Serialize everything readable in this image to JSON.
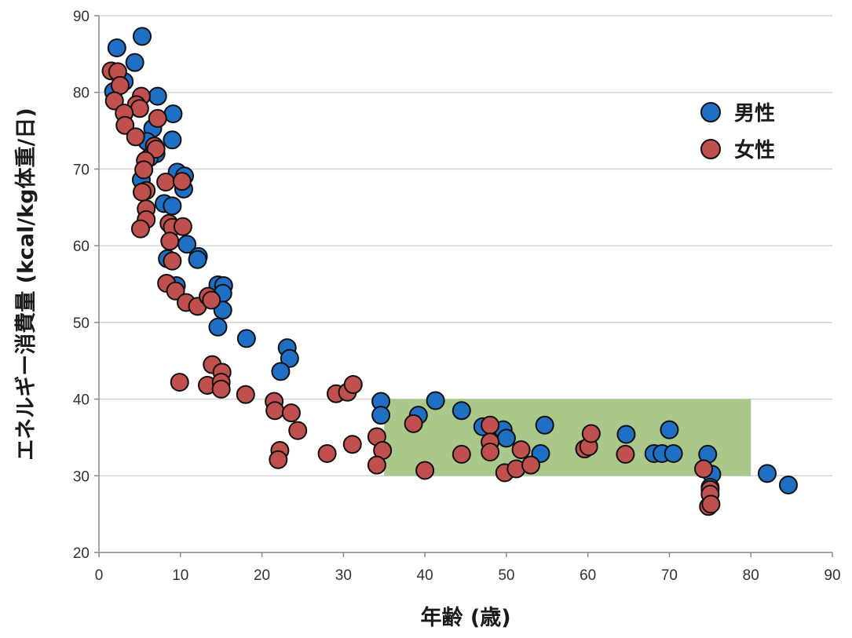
{
  "chart_data": {
    "type": "scatter",
    "title": "",
    "xlabel": "年齢 (歳)",
    "ylabel": "エネルギー消費量 (kcal/kg体重/日)",
    "xlim": [
      0,
      90
    ],
    "ylim": [
      20,
      90
    ],
    "x_ticks": [
      "0",
      "10",
      "20",
      "30",
      "40",
      "50",
      "60",
      "70",
      "80",
      "90"
    ],
    "y_ticks": [
      "20",
      "30",
      "40",
      "50",
      "60",
      "70",
      "80",
      "90"
    ],
    "grid": "horizontal",
    "legend_position": "top-right",
    "highlight_region": {
      "x": [
        35,
        80
      ],
      "y": [
        30,
        40
      ],
      "color": "#a9c88a"
    },
    "series": [
      {
        "name": "男性",
        "color": "#1f6fc4",
        "points": [
          [
            5.3,
            87.3
          ],
          [
            2.2,
            85.8
          ],
          [
            4.4,
            83.9
          ],
          [
            3.1,
            81.4
          ],
          [
            1.8,
            80.1
          ],
          [
            7.2,
            79.5
          ],
          [
            9.1,
            77.2
          ],
          [
            6.6,
            75.3
          ],
          [
            5.9,
            73.6
          ],
          [
            9.0,
            73.8
          ],
          [
            7.0,
            72.0
          ],
          [
            6.2,
            71.5
          ],
          [
            9.6,
            69.6
          ],
          [
            10.5,
            69.1
          ],
          [
            5.2,
            68.6
          ],
          [
            10.4,
            67.4
          ],
          [
            8.0,
            65.5
          ],
          [
            9.0,
            65.2
          ],
          [
            10.8,
            60.2
          ],
          [
            12.2,
            58.6
          ],
          [
            8.4,
            58.3
          ],
          [
            12.1,
            58.2
          ],
          [
            9.5,
            54.8
          ],
          [
            14.6,
            54.9
          ],
          [
            15.3,
            54.8
          ],
          [
            15.2,
            53.8
          ],
          [
            15.2,
            51.6
          ],
          [
            14.6,
            49.4
          ],
          [
            18.1,
            47.9
          ],
          [
            23.1,
            46.7
          ],
          [
            23.4,
            45.3
          ],
          [
            22.3,
            43.6
          ],
          [
            34.6,
            39.7
          ],
          [
            41.3,
            39.8
          ],
          [
            34.6,
            37.9
          ],
          [
            39.2,
            37.9
          ],
          [
            44.5,
            38.5
          ],
          [
            47.1,
            36.4
          ],
          [
            49.6,
            36.0
          ],
          [
            54.7,
            36.6
          ],
          [
            50.0,
            34.9
          ],
          [
            64.7,
            35.4
          ],
          [
            70.0,
            36.0
          ],
          [
            54.2,
            32.9
          ],
          [
            68.1,
            32.9
          ],
          [
            69.1,
            32.9
          ],
          [
            70.5,
            32.9
          ],
          [
            74.7,
            32.8
          ],
          [
            75.2,
            30.2
          ],
          [
            82.0,
            30.3
          ],
          [
            84.6,
            28.8
          ],
          [
            75.0,
            28.5
          ]
        ]
      },
      {
        "name": "女性",
        "color": "#c0504d",
        "points": [
          [
            1.5,
            82.8
          ],
          [
            2.3,
            82.7
          ],
          [
            2.6,
            80.9
          ],
          [
            5.2,
            79.5
          ],
          [
            4.6,
            78.4
          ],
          [
            1.9,
            78.9
          ],
          [
            5.0,
            77.9
          ],
          [
            3.1,
            77.3
          ],
          [
            7.2,
            76.6
          ],
          [
            3.2,
            75.7
          ],
          [
            4.5,
            74.2
          ],
          [
            6.8,
            73.0
          ],
          [
            7.0,
            72.6
          ],
          [
            5.7,
            71.1
          ],
          [
            5.5,
            69.9
          ],
          [
            8.2,
            68.3
          ],
          [
            10.2,
            68.4
          ],
          [
            5.8,
            67.2
          ],
          [
            5.3,
            67.0
          ],
          [
            5.8,
            64.8
          ],
          [
            5.8,
            63.4
          ],
          [
            8.6,
            62.9
          ],
          [
            9.0,
            62.4
          ],
          [
            10.3,
            62.5
          ],
          [
            5.1,
            62.2
          ],
          [
            8.7,
            60.6
          ],
          [
            9.0,
            58.0
          ],
          [
            8.3,
            55.1
          ],
          [
            9.4,
            54.1
          ],
          [
            10.7,
            52.6
          ],
          [
            12.1,
            52.1
          ],
          [
            13.4,
            53.4
          ],
          [
            13.8,
            52.9
          ],
          [
            9.9,
            42.2
          ],
          [
            13.9,
            44.5
          ],
          [
            15.1,
            43.5
          ],
          [
            13.3,
            41.8
          ],
          [
            15.0,
            42.2
          ],
          [
            15.0,
            41.3
          ],
          [
            18.0,
            40.6
          ],
          [
            21.5,
            39.7
          ],
          [
            21.6,
            38.5
          ],
          [
            23.6,
            38.2
          ],
          [
            24.4,
            35.9
          ],
          [
            22.2,
            33.3
          ],
          [
            22.0,
            32.1
          ],
          [
            28.0,
            32.9
          ],
          [
            29.1,
            40.7
          ],
          [
            30.5,
            40.9
          ],
          [
            31.2,
            41.9
          ],
          [
            31.1,
            34.1
          ],
          [
            34.1,
            35.1
          ],
          [
            34.8,
            33.3
          ],
          [
            34.1,
            31.4
          ],
          [
            38.6,
            36.8
          ],
          [
            40.0,
            30.7
          ],
          [
            44.5,
            32.8
          ],
          [
            48.0,
            36.6
          ],
          [
            48.0,
            34.4
          ],
          [
            48.0,
            33.1
          ],
          [
            49.8,
            30.4
          ],
          [
            51.2,
            30.9
          ],
          [
            51.8,
            33.4
          ],
          [
            53.0,
            31.4
          ],
          [
            59.6,
            33.5
          ],
          [
            60.1,
            33.8
          ],
          [
            60.4,
            35.5
          ],
          [
            64.6,
            32.8
          ],
          [
            74.2,
            30.9
          ],
          [
            75.0,
            28.2
          ],
          [
            75.0,
            27.6
          ],
          [
            74.8,
            26.0
          ],
          [
            75.1,
            26.3
          ]
        ]
      }
    ]
  }
}
